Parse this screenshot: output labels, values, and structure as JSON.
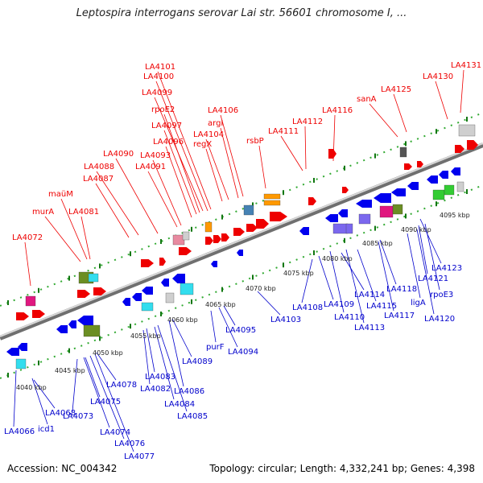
{
  "title": "Leptospira interrogans serovar Lai str. 56601 chromosome I, ...",
  "footer": {
    "accession": "Accession: NC_004342",
    "summary": "Topology: circular; Length: 4,332,241 bp; Genes: 4,398"
  },
  "colors": {
    "forward_label": "#ee0000",
    "reverse_label": "#0000cc",
    "axis": "#888888",
    "dotted_track": "#33aa33"
  },
  "kbp_ticks": [
    "4040 kbp",
    "4045 kbp",
    "4050 kbp",
    "4055 kbp",
    "4060 kbp",
    "4065 kbp",
    "4070 kbp",
    "4075 kbp",
    "4080 kbp",
    "4085 kbp",
    "4090 kbp",
    "4095 kbp"
  ],
  "top_labels": [
    "LA4072",
    "murA",
    "maüM",
    "LA4081",
    "LA4087",
    "LA4088",
    "LA4090",
    "LA4091",
    "LA4093",
    "LA4096",
    "LA4097",
    "rpoE2",
    "LA4099",
    "LA4100",
    "LA4101",
    "regX",
    "LA4104",
    "argI",
    "LA4106",
    "rsbP",
    "LA4111",
    "LA4112",
    "LA4116",
    "sanA",
    "LA4125",
    "LA4130",
    "LA4131"
  ],
  "bottom_labels": [
    "LA4066",
    "icd1",
    "LA4068",
    "LA4073",
    "LA4074",
    "LA4075",
    "LA4076",
    "LA4077",
    "LA4078",
    "LA4082",
    "LA4083",
    "LA4084",
    "LA4085",
    "LA4086",
    "LA4089",
    "purF",
    "LA4094",
    "LA4095",
    "LA4103",
    "LA4108",
    "LA4109",
    "LA4110",
    "LA4113",
    "LA4114",
    "LA4115",
    "LA4117",
    "LA4118",
    "ligA",
    "LA4120",
    "LA4121",
    "rpoE3",
    "LA4123"
  ]
}
